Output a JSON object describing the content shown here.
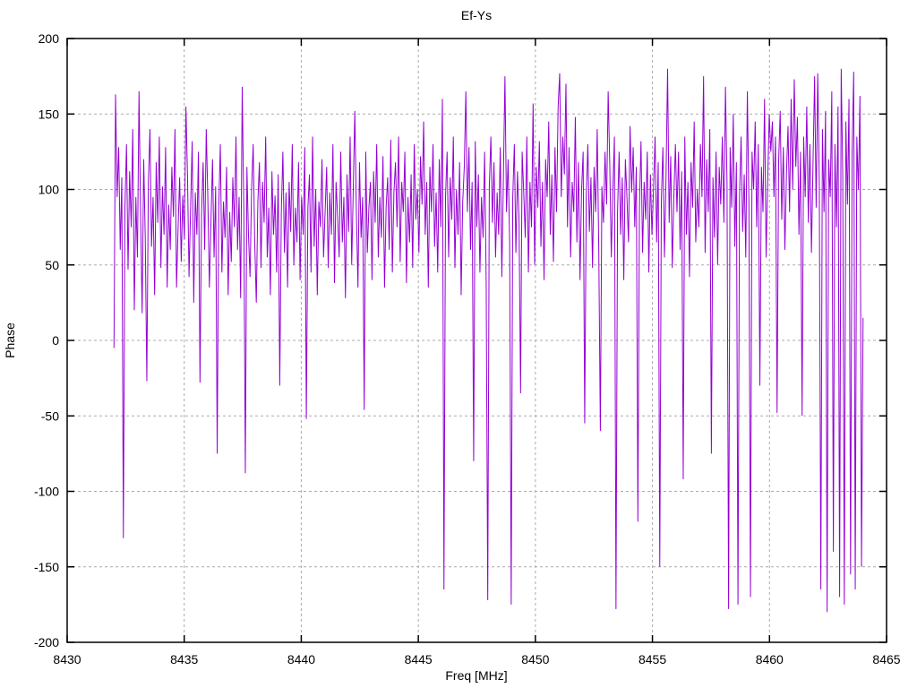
{
  "window": {
    "background": "#ffffff"
  },
  "chart_data": {
    "type": "line",
    "title": "Ef-Ys",
    "xlabel": "Freq [MHz]",
    "ylabel": "Phase",
    "xlim": [
      8430,
      8465
    ],
    "ylim": [
      -200,
      200
    ],
    "x_ticks": [
      8430,
      8435,
      8440,
      8445,
      8450,
      8455,
      8460,
      8465
    ],
    "y_ticks": [
      -200,
      -150,
      -100,
      -50,
      0,
      50,
      100,
      150,
      200
    ],
    "grid": true,
    "legend": "none",
    "line_color": "#9400d3",
    "grid_color": "#ababab",
    "border_color": "#000000",
    "series": [
      {
        "name": "Ef-Ys",
        "x_start": 8432.0,
        "x_step": 0.0668,
        "values": [
          -5,
          163,
          95,
          128,
          60,
          108,
          -131,
          88,
          130,
          47,
          112,
          75,
          140,
          20,
          95,
          55,
          165,
          85,
          18,
          120,
          68,
          -27,
          105,
          140,
          62,
          95,
          30,
          118,
          78,
          135,
          48,
          102,
          70,
          128,
          35,
          90,
          60,
          115,
          82,
          140,
          35,
          75,
          108,
          52,
          96,
          67,
          155,
          110,
          42,
          88,
          132,
          25,
          98,
          70,
          125,
          -28,
          85,
          118,
          60,
          140,
          95,
          35,
          78,
          120,
          55,
          102,
          -75,
          88,
          130,
          45,
          92,
          68,
          115,
          30,
          85,
          52,
          108,
          75,
          135,
          60,
          95,
          28,
          168,
          88,
          -88,
          115,
          70,
          42,
          100,
          130,
          65,
          25,
          92,
          118,
          48,
          105,
          78,
          135,
          55,
          88,
          30,
          112,
          70,
          96,
          45,
          110,
          -30,
          85,
          125,
          58,
          98,
          35,
          105,
          72,
          130,
          50,
          88,
          65,
          118,
          40,
          95,
          70,
          128,
          -52,
          88,
          110,
          45,
          135,
          62,
          100,
          30,
          92,
          75,
          120,
          55,
          85,
          115,
          48,
          98,
          70,
          130,
          38,
          105,
          82,
          55,
          125,
          65,
          95,
          28,
          110,
          72,
          135,
          50,
          100,
          152,
          85,
          35,
          118,
          68,
          95,
          -46,
          125,
          58,
          88,
          105,
          40,
          112,
          78,
          130,
          55,
          95,
          68,
          122,
          35,
          88,
          108,
          60,
          133,
          45,
          98,
          118,
          75,
          135,
          52,
          105,
          85,
          125,
          38,
          95,
          65,
          110,
          48,
          130,
          80,
          100,
          58,
          122,
          90,
          145,
          70,
          105,
          35,
          115,
          85,
          130,
          62,
          98,
          45,
          120,
          75,
          160,
          -165,
          95,
          125,
          55,
          108,
          80,
          135,
          48,
          100,
          70,
          118,
          30,
          92,
          115,
          165,
          85,
          128,
          60,
          105,
          -80,
          132,
          75,
          110,
          45,
          95,
          68,
          125,
          38,
          -172,
          102,
          135,
          78,
          118,
          55,
          98,
          70,
          128,
          42,
          108,
          175,
          85,
          120,
          65,
          -175,
          95,
          130,
          58,
          112,
          80,
          -35,
          125,
          98,
          68,
          135,
          45,
          105,
          75,
          157,
          50,
          115,
          88,
          132,
          62,
          105,
          40,
          120,
          95,
          145,
          70,
          110,
          52,
          128,
          85,
          155,
          177,
          95,
          135,
          110,
          170,
          75,
          128,
          55,
          105,
          85,
          148,
          65,
          118,
          40,
          100,
          125,
          -55,
          95,
          130,
          72,
          108,
          48,
          115,
          85,
          140,
          60,
          -60,
          102,
          78,
          125,
          90,
          165,
          118,
          55,
          100,
          135,
          -178,
          85,
          125,
          70,
          108,
          40,
          120,
          95,
          65,
          142,
          98,
          128,
          75,
          115,
          -120,
          88,
          132,
          58,
          105,
          80,
          125,
          45,
          110,
          70,
          100,
          135,
          65,
          118,
          -150,
          92,
          128,
          55,
          108,
          180,
          78,
          122,
          48,
          95,
          130,
          85,
          125,
          60,
          112,
          -92,
          135,
          70,
          105,
          42,
          118,
          88,
          145,
          65,
          100,
          75,
          130,
          95,
          175,
          58,
          120,
          85,
          140,
          -75,
          108,
          68,
          125,
          50,
          115,
          90,
          135,
          78,
          168,
          105,
          -178,
          128,
          88,
          150,
          62,
          118,
          -175,
          95,
          135,
          72,
          110,
          55,
          165,
          90,
          -170,
          125,
          100,
          145,
          75,
          130,
          -30,
          115,
          85,
          160,
          55,
          105,
          150,
          125,
          145,
          95,
          135,
          -48,
          118,
          152,
          80,
          128,
          60,
          110,
          142,
          85,
          160,
          100,
          173,
          115,
          148,
          70,
          125,
          -50,
          135,
          95,
          155,
          78,
          130,
          58,
          118,
          175,
          88,
          177,
          105,
          -165,
          140,
          85,
          152,
          -180,
          120,
          95,
          165,
          -140,
          130,
          75,
          155,
          -170,
          180,
          110,
          -175,
          145,
          90,
          160,
          -155,
          125,
          178,
          -165,
          135,
          100,
          162,
          -150,
          15
        ]
      }
    ]
  }
}
